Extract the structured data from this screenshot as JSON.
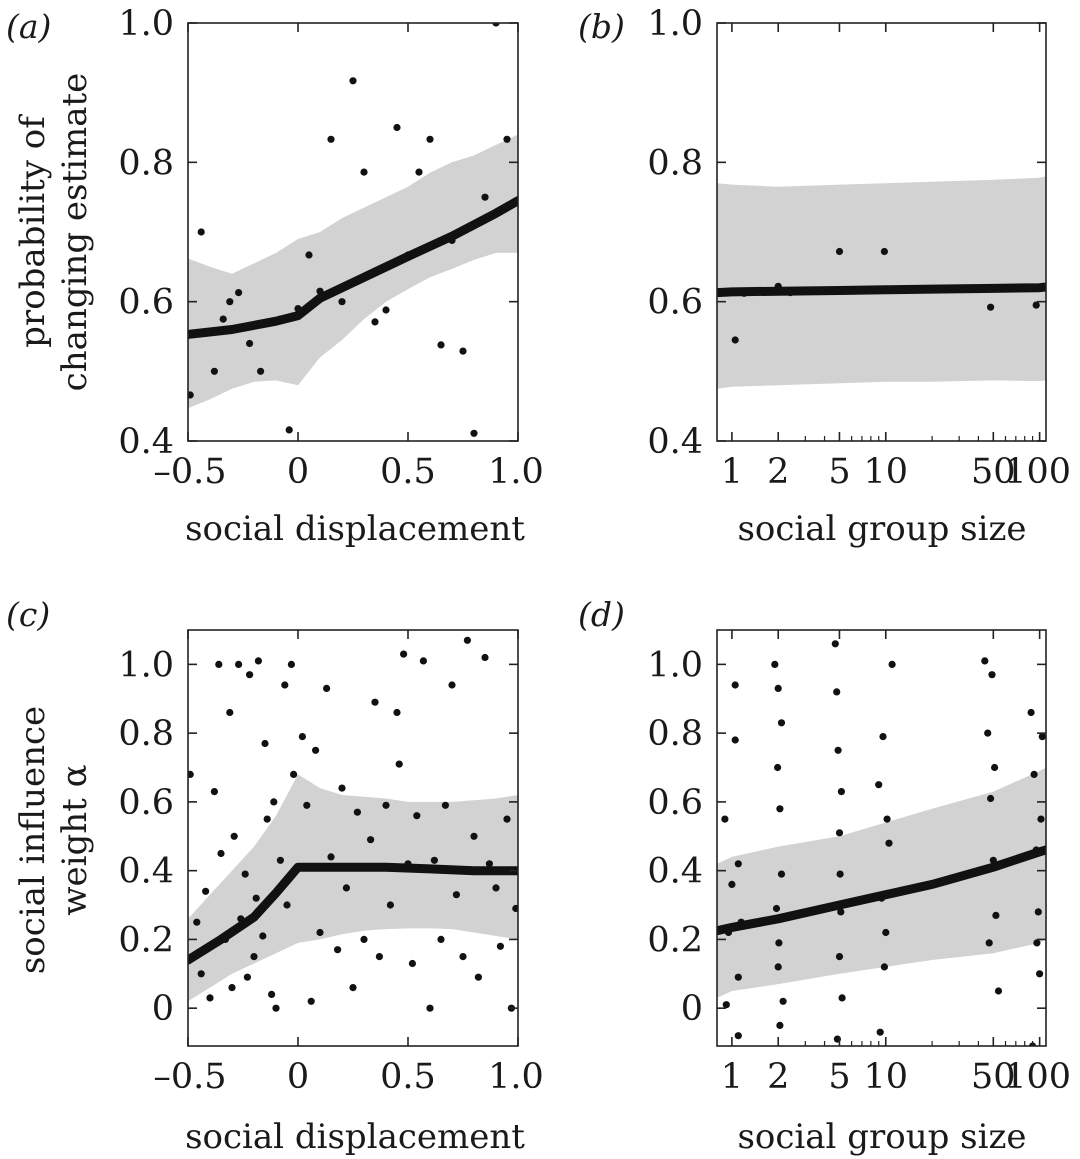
{
  "colors": {
    "band": "#d2d2d2",
    "line": "#111111",
    "points": "#111111",
    "frame": "#222222"
  },
  "chart_data": [
    {
      "panel": "(a)",
      "type": "scatter",
      "xscale": "linear",
      "xlabel": "social displacement",
      "ylabel_lines": [
        "probability of",
        "changing estimate"
      ],
      "xlim": [
        -0.5,
        1.0
      ],
      "ylim": [
        0.4,
        1.0
      ],
      "xticks": [
        -0.5,
        0,
        0.5,
        1.0
      ],
      "xtick_labels": [
        "–0.5",
        "0",
        "0.5",
        "1.0"
      ],
      "yticks": [
        0.4,
        0.6,
        0.8,
        1.0
      ],
      "ytick_labels": [
        "0.4",
        "0.6",
        "0.8",
        "1.0"
      ],
      "fit_line": {
        "x": [
          -0.5,
          -0.3,
          -0.1,
          0.0,
          0.1,
          0.3,
          0.5,
          0.7,
          0.9,
          1.0
        ],
        "y": [
          0.553,
          0.56,
          0.572,
          0.58,
          0.605,
          0.635,
          0.665,
          0.694,
          0.727,
          0.745
        ]
      },
      "band": {
        "x": [
          -0.5,
          -0.4,
          -0.3,
          -0.2,
          -0.1,
          0.0,
          0.1,
          0.2,
          0.3,
          0.4,
          0.5,
          0.6,
          0.7,
          0.8,
          0.9,
          1.0
        ],
        "lower": [
          0.447,
          0.46,
          0.475,
          0.485,
          0.487,
          0.48,
          0.52,
          0.545,
          0.575,
          0.6,
          0.618,
          0.635,
          0.647,
          0.66,
          0.67,
          0.67
        ],
        "upper": [
          0.662,
          0.65,
          0.64,
          0.655,
          0.67,
          0.69,
          0.7,
          0.72,
          0.735,
          0.75,
          0.765,
          0.785,
          0.8,
          0.81,
          0.825,
          0.84
        ]
      },
      "points": [
        [
          -0.49,
          0.466
        ],
        [
          -0.44,
          0.7
        ],
        [
          -0.38,
          0.5
        ],
        [
          -0.34,
          0.575
        ],
        [
          -0.31,
          0.6
        ],
        [
          -0.27,
          0.613
        ],
        [
          -0.22,
          0.54
        ],
        [
          -0.17,
          0.5
        ],
        [
          -0.08,
          0.575
        ],
        [
          -0.04,
          0.416
        ],
        [
          0.0,
          0.59
        ],
        [
          0.05,
          0.667
        ],
        [
          0.1,
          0.615
        ],
        [
          0.15,
          0.833
        ],
        [
          0.2,
          0.6
        ],
        [
          0.25,
          0.917
        ],
        [
          0.3,
          0.786
        ],
        [
          0.35,
          0.571
        ],
        [
          0.4,
          0.588
        ],
        [
          0.45,
          0.85
        ],
        [
          0.5,
          0.667
        ],
        [
          0.55,
          0.786
        ],
        [
          0.6,
          0.833
        ],
        [
          0.65,
          0.538
        ],
        [
          0.7,
          0.688
        ],
        [
          0.75,
          0.529
        ],
        [
          0.8,
          0.411
        ],
        [
          0.85,
          0.75
        ],
        [
          0.9,
          1.0
        ],
        [
          0.95,
          0.833
        ]
      ]
    },
    {
      "panel": "(b)",
      "type": "scatter",
      "xscale": "log",
      "xlabel": "social group size",
      "ylabel_lines": [],
      "xlim": [
        0.8,
        110
      ],
      "ylim": [
        0.4,
        1.0
      ],
      "xticks": [
        1,
        2,
        5,
        10,
        50,
        100
      ],
      "xtick_labels": [
        "1",
        "2",
        "5",
        "10",
        "50",
        "100"
      ],
      "yticks": [
        0.4,
        0.6,
        0.8,
        1.0
      ],
      "ytick_labels": [
        "0.4",
        "0.6",
        "0.8",
        "1.0"
      ],
      "fit_line": {
        "x": [
          0.8,
          1,
          2,
          5,
          10,
          20,
          50,
          100,
          110
        ],
        "y": [
          0.613,
          0.614,
          0.615,
          0.616,
          0.617,
          0.618,
          0.619,
          0.62,
          0.621
        ]
      },
      "band": {
        "x": [
          0.8,
          1,
          2,
          5,
          10,
          20,
          50,
          100,
          110
        ],
        "lower": [
          0.475,
          0.478,
          0.48,
          0.483,
          0.485,
          0.485,
          0.487,
          0.486,
          0.487
        ],
        "upper": [
          0.77,
          0.768,
          0.765,
          0.768,
          0.77,
          0.772,
          0.775,
          0.778,
          0.78
        ]
      },
      "points": [
        [
          0.9,
          0.614
        ],
        [
          1.05,
          0.545
        ],
        [
          1.2,
          0.612
        ],
        [
          2.0,
          0.622
        ],
        [
          2.4,
          0.613
        ],
        [
          5.0,
          0.672
        ],
        [
          5.5,
          0.615
        ],
        [
          7.0,
          0.616
        ],
        [
          9.8,
          0.672
        ],
        [
          12,
          0.617
        ],
        [
          20,
          0.618
        ],
        [
          30,
          0.619
        ],
        [
          48,
          0.592
        ],
        [
          60,
          0.62
        ],
        [
          95,
          0.595
        ],
        [
          100,
          0.62
        ]
      ]
    },
    {
      "panel": "(c)",
      "type": "scatter",
      "xscale": "linear",
      "xlabel": "social displacement",
      "ylabel_lines": [
        "social influence",
        "weight α"
      ],
      "xlim": [
        -0.5,
        1.0
      ],
      "ylim": [
        -0.11,
        1.1
      ],
      "xticks": [
        -0.5,
        0,
        0.5,
        1.0
      ],
      "xtick_labels": [
        "–0.5",
        "0",
        "0.5",
        "1.0"
      ],
      "yticks": [
        0,
        0.2,
        0.4,
        0.6,
        0.8,
        1.0
      ],
      "ytick_labels": [
        "0",
        "0.2",
        "0.4",
        "0.6",
        "0.8",
        "1.0"
      ],
      "fit_line": {
        "x": [
          -0.5,
          -0.35,
          -0.2,
          -0.1,
          0.0,
          0.2,
          0.4,
          0.6,
          0.8,
          1.0
        ],
        "y": [
          0.14,
          0.2,
          0.265,
          0.335,
          0.41,
          0.41,
          0.41,
          0.405,
          0.4,
          0.4
        ]
      },
      "band": {
        "x": [
          -0.5,
          -0.4,
          -0.3,
          -0.2,
          -0.1,
          0.0,
          0.1,
          0.2,
          0.3,
          0.4,
          0.5,
          0.6,
          0.7,
          0.8,
          0.9,
          1.0
        ],
        "lower": [
          0.02,
          0.06,
          0.1,
          0.13,
          0.16,
          0.19,
          0.2,
          0.215,
          0.225,
          0.23,
          0.232,
          0.232,
          0.23,
          0.22,
          0.21,
          0.2
        ],
        "upper": [
          0.26,
          0.33,
          0.4,
          0.47,
          0.56,
          0.68,
          0.64,
          0.62,
          0.615,
          0.61,
          0.6,
          0.6,
          0.6,
          0.605,
          0.61,
          0.62
        ]
      },
      "points": [
        [
          -0.49,
          0.68
        ],
        [
          -0.46,
          0.25
        ],
        [
          -0.44,
          0.1
        ],
        [
          -0.42,
          0.34
        ],
        [
          -0.4,
          0.03
        ],
        [
          -0.38,
          0.63
        ],
        [
          -0.36,
          1.0
        ],
        [
          -0.35,
          0.45
        ],
        [
          -0.33,
          0.2
        ],
        [
          -0.31,
          0.86
        ],
        [
          -0.3,
          0.06
        ],
        [
          -0.29,
          0.5
        ],
        [
          -0.27,
          1.0
        ],
        [
          -0.26,
          0.26
        ],
        [
          -0.24,
          0.39
        ],
        [
          -0.23,
          0.09
        ],
        [
          -0.22,
          0.97
        ],
        [
          -0.2,
          0.15
        ],
        [
          -0.19,
          0.32
        ],
        [
          -0.18,
          1.01
        ],
        [
          -0.16,
          0.21
        ],
        [
          -0.15,
          0.77
        ],
        [
          -0.14,
          0.55
        ],
        [
          -0.12,
          0.04
        ],
        [
          -0.11,
          0.6
        ],
        [
          -0.1,
          0.0
        ],
        [
          -0.08,
          0.43
        ],
        [
          -0.06,
          0.94
        ],
        [
          -0.05,
          0.3
        ],
        [
          -0.03,
          1.0
        ],
        [
          -0.02,
          0.68
        ],
        [
          0.02,
          0.79
        ],
        [
          0.04,
          0.59
        ],
        [
          0.06,
          0.02
        ],
        [
          0.08,
          0.75
        ],
        [
          0.1,
          0.22
        ],
        [
          0.13,
          0.93
        ],
        [
          0.15,
          0.44
        ],
        [
          0.18,
          0.17
        ],
        [
          0.2,
          0.64
        ],
        [
          0.22,
          0.35
        ],
        [
          0.25,
          0.06
        ],
        [
          0.27,
          0.57
        ],
        [
          0.3,
          0.2
        ],
        [
          0.33,
          0.49
        ],
        [
          0.35,
          0.89
        ],
        [
          0.37,
          0.15
        ],
        [
          0.4,
          0.59
        ],
        [
          0.42,
          0.3
        ],
        [
          0.45,
          0.86
        ],
        [
          0.46,
          0.71
        ],
        [
          0.48,
          1.03
        ],
        [
          0.5,
          0.42
        ],
        [
          0.52,
          0.13
        ],
        [
          0.54,
          0.56
        ],
        [
          0.57,
          1.01
        ],
        [
          0.6,
          0.0
        ],
        [
          0.62,
          0.43
        ],
        [
          0.65,
          0.2
        ],
        [
          0.67,
          0.59
        ],
        [
          0.7,
          0.94
        ],
        [
          0.72,
          0.33
        ],
        [
          0.75,
          0.15
        ],
        [
          0.77,
          1.07
        ],
        [
          0.8,
          0.5
        ],
        [
          0.82,
          0.09
        ],
        [
          0.85,
          1.02
        ],
        [
          0.87,
          0.42
        ],
        [
          0.9,
          0.35
        ],
        [
          0.92,
          0.18
        ],
        [
          0.95,
          0.55
        ],
        [
          0.97,
          0.0
        ],
        [
          0.99,
          0.29
        ]
      ]
    },
    {
      "panel": "(d)",
      "type": "scatter",
      "xscale": "log",
      "xlabel": "social group size",
      "ylabel_lines": [],
      "xlim": [
        0.8,
        110
      ],
      "ylim": [
        -0.11,
        1.1
      ],
      "xticks": [
        1,
        2,
        5,
        10,
        50,
        100
      ],
      "xtick_labels": [
        "1",
        "2",
        "5",
        "10",
        "50",
        "100"
      ],
      "yticks": [
        0,
        0.2,
        0.4,
        0.6,
        0.8,
        1.0
      ],
      "ytick_labels": [
        "0",
        "0.2",
        "0.4",
        "0.6",
        "0.8",
        "1.0"
      ],
      "fit_line": {
        "x": [
          0.8,
          1,
          2,
          5,
          10,
          20,
          50,
          100,
          110
        ],
        "y": [
          0.225,
          0.235,
          0.26,
          0.3,
          0.33,
          0.36,
          0.41,
          0.455,
          0.46
        ]
      },
      "band": {
        "x": [
          0.8,
          1,
          2,
          5,
          10,
          20,
          50,
          100,
          110
        ],
        "lower": [
          0.03,
          0.05,
          0.07,
          0.1,
          0.12,
          0.14,
          0.16,
          0.19,
          0.2
        ],
        "upper": [
          0.42,
          0.44,
          0.47,
          0.5,
          0.54,
          0.58,
          0.63,
          0.69,
          0.7
        ]
      },
      "points": [
        [
          0.9,
          0.55
        ],
        [
          0.95,
          0.22
        ],
        [
          1.0,
          0.36
        ],
        [
          1.05,
          0.78
        ],
        [
          1.1,
          0.09
        ],
        [
          1.05,
          0.94
        ],
        [
          1.1,
          -0.08
        ],
        [
          0.92,
          0.01
        ],
        [
          1.1,
          0.42
        ],
        [
          1.15,
          0.25
        ],
        [
          1.9,
          1.0
        ],
        [
          2.0,
          0.93
        ],
        [
          2.05,
          0.58
        ],
        [
          2.1,
          0.83
        ],
        [
          1.95,
          0.29
        ],
        [
          2.0,
          0.12
        ],
        [
          2.05,
          -0.05
        ],
        [
          2.1,
          0.39
        ],
        [
          2.15,
          0.02
        ],
        [
          1.98,
          0.7
        ],
        [
          2.02,
          0.19
        ],
        [
          4.7,
          1.06
        ],
        [
          4.8,
          0.92
        ],
        [
          4.9,
          0.75
        ],
        [
          5.0,
          0.51
        ],
        [
          5.1,
          0.28
        ],
        [
          5.2,
          0.03
        ],
        [
          5.0,
          0.15
        ],
        [
          4.85,
          -0.09
        ],
        [
          5.15,
          0.63
        ],
        [
          5.05,
          0.39
        ],
        [
          9.0,
          0.65
        ],
        [
          9.4,
          0.32
        ],
        [
          9.6,
          0.79
        ],
        [
          10.0,
          0.22
        ],
        [
          10.5,
          0.48
        ],
        [
          9.2,
          -0.07
        ],
        [
          9.8,
          0.12
        ],
        [
          11,
          1.0
        ],
        [
          10.2,
          0.55
        ],
        [
          44,
          1.01
        ],
        [
          46,
          0.8
        ],
        [
          48,
          0.61
        ],
        [
          50,
          0.43
        ],
        [
          52,
          0.27
        ],
        [
          54,
          0.05
        ],
        [
          49,
          0.97
        ],
        [
          47,
          0.19
        ],
        [
          51,
          0.7
        ],
        [
          88,
          0.86
        ],
        [
          92,
          0.68
        ],
        [
          95,
          0.46
        ],
        [
          98,
          0.28
        ],
        [
          100,
          0.1
        ],
        [
          104,
          0.79
        ],
        [
          90,
          -0.11
        ],
        [
          102,
          0.55
        ],
        [
          96,
          0.19
        ]
      ]
    }
  ]
}
